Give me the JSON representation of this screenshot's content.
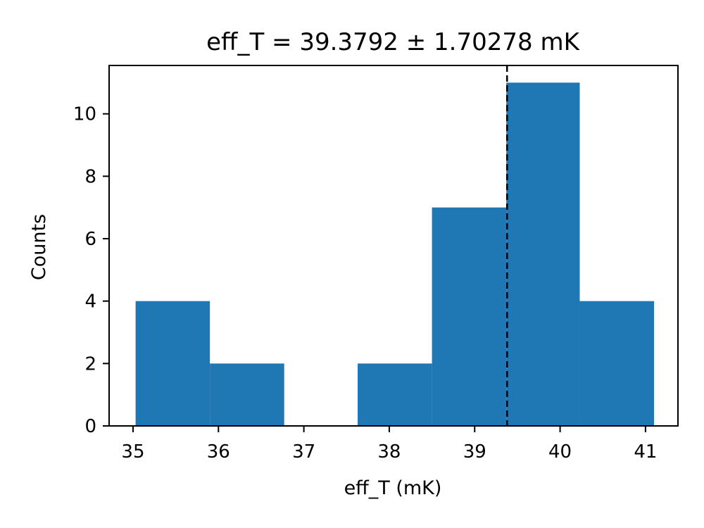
{
  "chart_data": {
    "type": "bar",
    "title": "eff_T = 39.3792  ± 1.70278 mK",
    "xlabel": "eff_T (mK)",
    "ylabel": "Counts",
    "xlim": [
      34.72,
      41.38
    ],
    "ylim": [
      0,
      11.55
    ],
    "xticks": [
      35,
      36,
      37,
      38,
      39,
      40,
      41
    ],
    "yticks": [
      0,
      2,
      4,
      6,
      8,
      10
    ],
    "bins": [
      {
        "x0": 35.03,
        "x1": 35.9,
        "count": 4
      },
      {
        "x0": 35.9,
        "x1": 36.77,
        "count": 2
      },
      {
        "x0": 36.77,
        "x1": 37.63,
        "count": 0
      },
      {
        "x0": 37.63,
        "x1": 38.5,
        "count": 2
      },
      {
        "x0": 38.5,
        "x1": 39.37,
        "count": 7
      },
      {
        "x0": 39.37,
        "x1": 40.23,
        "count": 11
      },
      {
        "x0": 40.23,
        "x1": 41.1,
        "count": 4
      }
    ],
    "mean_line": 39.3792,
    "bar_color": "#1f77b4",
    "grid": false,
    "legend": "none"
  }
}
